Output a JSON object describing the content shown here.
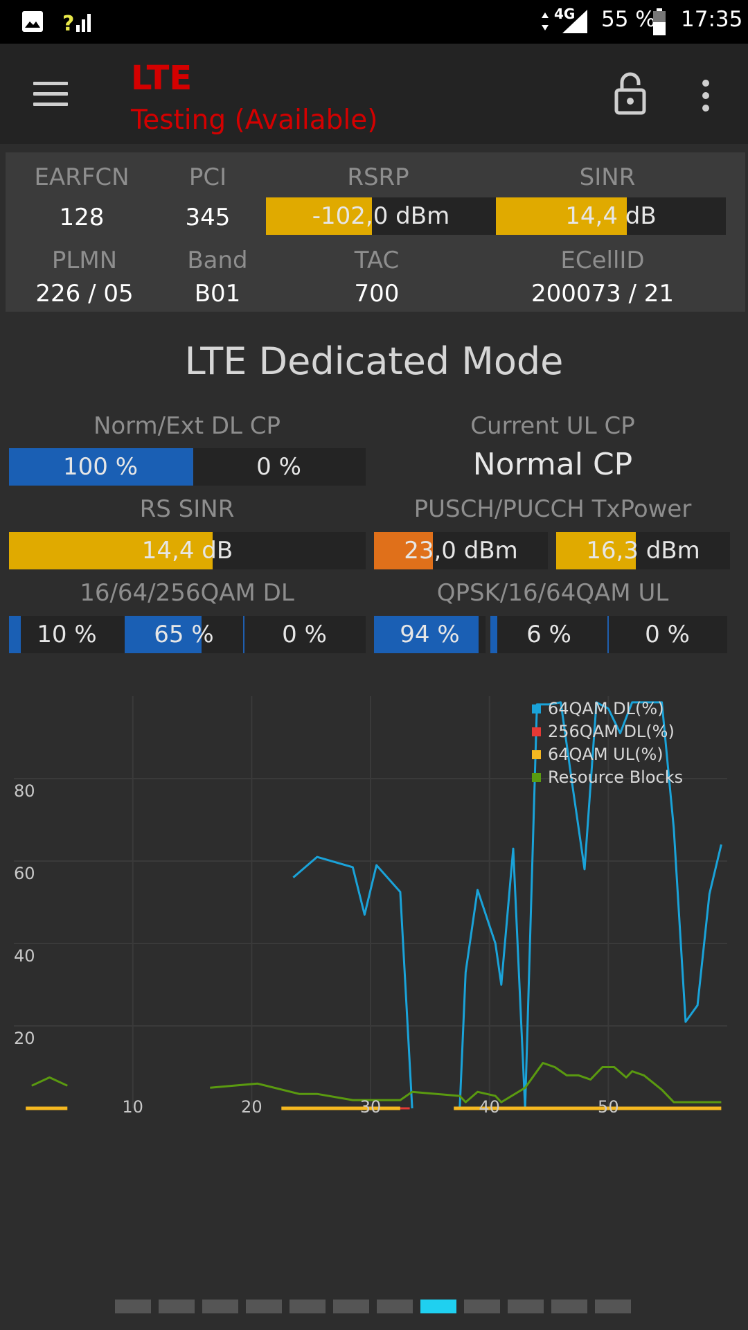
{
  "status_bar": {
    "network_type": "4G",
    "battery": "55 %",
    "time": "17:35",
    "icons": [
      "image-icon",
      "signal-unknown-icon",
      "data-arrows-icon",
      "signal-4g-icon",
      "battery-icon"
    ]
  },
  "toolbar": {
    "title": "LTE",
    "subtitle": "Testing (Available)",
    "icons": [
      "menu-icon",
      "lock-open-icon",
      "more-vert-icon"
    ],
    "accent_color": "#d40000"
  },
  "cell_info": {
    "earfcn": {
      "label": "EARFCN",
      "value": "128"
    },
    "pci": {
      "label": "PCI",
      "value": "345"
    },
    "rsrp": {
      "label": "RSRP",
      "value": "-102,0 dBm",
      "fill": 0.46
    },
    "sinr": {
      "label": "SINR",
      "value": "14,4 dB",
      "fill": 0.57
    },
    "plmn": {
      "label": "PLMN",
      "value": "226 / 05"
    },
    "band": {
      "label": "Band",
      "value": "B01"
    },
    "tac": {
      "label": "TAC",
      "value": "700"
    },
    "ecellid": {
      "label": "ECellID",
      "value": "200073 / 21"
    }
  },
  "dedicated": {
    "title": "LTE Dedicated Mode",
    "dl_cp": {
      "label": "Norm/Ext DL CP",
      "normal": "100 %",
      "normal_fill": 1.0,
      "extended": "0 %",
      "extended_fill": 0.0
    },
    "ul_cp": {
      "label": "Current UL CP",
      "value": "Normal CP"
    },
    "rs_sinr": {
      "label": "RS SINR",
      "value": "14,4 dB",
      "fill": 0.57
    },
    "tx_power": {
      "label": "PUSCH/PUCCH TxPower",
      "pusch": "23,0 dBm",
      "pusch_fill": 0.34,
      "pucch": "16,3 dBm",
      "pucch_fill": 0.46
    },
    "qam_dl": {
      "label": "16/64/256QAM DL",
      "qam16": "10 %",
      "qam16_fill": 0.1,
      "qam64": "65 %",
      "qam64_fill": 0.65,
      "qam256": "0 %",
      "qam256_fill": 0.0
    },
    "qam_ul": {
      "label": "QPSK/16/64QAM UL",
      "qpsk": "94 %",
      "qpsk_fill": 0.94,
      "qam16": "6 %",
      "qam16_fill": 0.06,
      "qam64": "0 %",
      "qam64_fill": 0.0
    }
  },
  "colors": {
    "yellow": "#e0aa00",
    "blue": "#1a5fb4",
    "orange": "#e0701a",
    "line_blue": "#1aa3d9",
    "line_red": "#e53935",
    "line_yellow": "#f5b820",
    "line_green": "#5a9a10",
    "pager_active": "#1fd0f0"
  },
  "chart_data": {
    "type": "line",
    "xlim": [
      0,
      60
    ],
    "ylim": [
      0,
      100
    ],
    "x_ticks": [
      "10",
      "20",
      "30",
      "40",
      "50"
    ],
    "y_ticks": [
      "20",
      "40",
      "60",
      "80"
    ],
    "grid": true,
    "legend_position": "top-right",
    "series": [
      {
        "name": "64QAM DL(%)",
        "color": "#1aa3d9",
        "segments": [
          [
            [
              23.5,
              56
            ],
            [
              25.5,
              61
            ],
            [
              28.5,
              58.5
            ],
            [
              29.5,
              47
            ],
            [
              30.5,
              59
            ],
            [
              32.5,
              52.5
            ],
            [
              33.5,
              0
            ]
          ],
          [
            [
              37.5,
              0
            ],
            [
              38,
              33
            ],
            [
              39,
              53
            ],
            [
              40.5,
              40
            ],
            [
              41,
              30
            ],
            [
              42,
              63
            ],
            [
              43,
              0
            ],
            [
              44,
              98
            ],
            [
              45,
              98
            ],
            [
              46,
              98.5
            ],
            [
              47,
              78
            ],
            [
              48,
              58
            ],
            [
              49,
              98.5
            ],
            [
              50,
              97
            ],
            [
              51,
              91
            ],
            [
              52,
              98.5
            ],
            [
              53.5,
              98.5
            ],
            [
              54.5,
              98.5
            ],
            [
              55.5,
              68
            ],
            [
              56.5,
              21
            ],
            [
              57.5,
              25
            ],
            [
              58.5,
              52
            ],
            [
              59.5,
              64
            ]
          ]
        ]
      },
      {
        "name": "256QAM DL(%)",
        "color": "#e53935",
        "segments": [
          [
            [
              32.5,
              0
            ],
            [
              33.3,
              0
            ]
          ]
        ]
      },
      {
        "name": "64QAM UL(%)",
        "color": "#f5b820",
        "segments": [
          [
            [
              1,
              0
            ],
            [
              4.5,
              0
            ]
          ],
          [
            [
              22.5,
              0
            ],
            [
              32.5,
              0
            ]
          ],
          [
            [
              37,
              0
            ],
            [
              59.5,
              0
            ]
          ]
        ]
      },
      {
        "name": "Resource Blocks",
        "color": "#5a9a10",
        "segments": [
          [
            [
              1.5,
              5.5
            ],
            [
              3,
              7.5
            ],
            [
              4.5,
              5.5
            ]
          ],
          [
            [
              16.5,
              5
            ],
            [
              20.5,
              6
            ],
            [
              24,
              3.5
            ],
            [
              25.5,
              3.5
            ],
            [
              28.5,
              2
            ],
            [
              32.5,
              2
            ],
            [
              33.5,
              4
            ],
            [
              37.5,
              3
            ],
            [
              38,
              1.5
            ],
            [
              39,
              4
            ],
            [
              40.5,
              3
            ],
            [
              41,
              1.5
            ],
            [
              43,
              5
            ],
            [
              44.5,
              11
            ],
            [
              45.5,
              10
            ],
            [
              46.5,
              8
            ],
            [
              47.5,
              8
            ],
            [
              48.5,
              7
            ],
            [
              49.5,
              10
            ],
            [
              50.5,
              10
            ],
            [
              51.5,
              7.5
            ],
            [
              52,
              9
            ],
            [
              53,
              8
            ],
            [
              54.5,
              4.5
            ],
            [
              55.5,
              1.5
            ],
            [
              59.5,
              1.5
            ]
          ]
        ]
      }
    ]
  },
  "pager": {
    "count": 12,
    "active": 7
  }
}
